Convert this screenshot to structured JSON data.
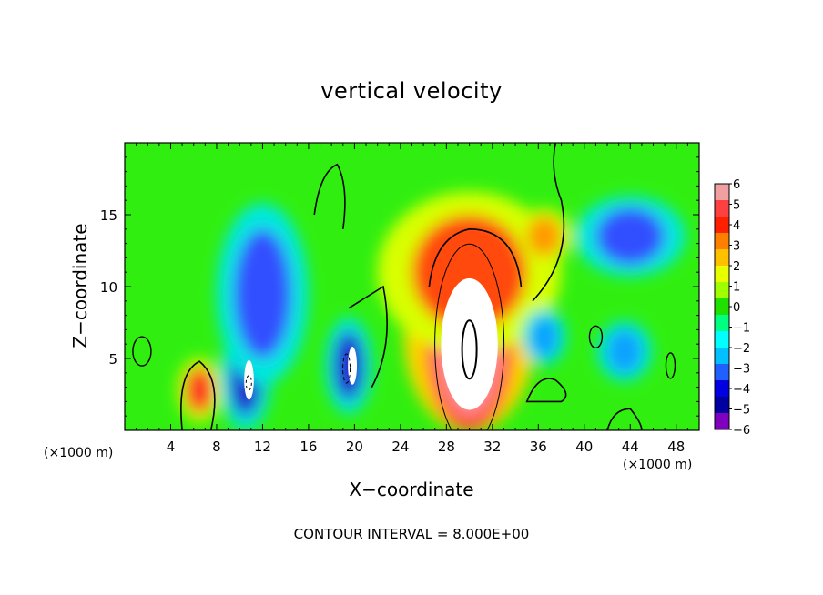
{
  "chart_data": {
    "type": "heatmap",
    "title": "vertical velocity",
    "xlabel": "X−coordinate",
    "ylabel": "Z−coordinate",
    "x_unit_label_left": "(×1000 m)",
    "x_unit_label_right": "(×1000 m)",
    "footnote": "CONTOUR INTERVAL = 8.000E+00",
    "xlim": [
      0,
      50
    ],
    "ylim": [
      0,
      20
    ],
    "x_ticks": [
      4,
      8,
      12,
      16,
      20,
      24,
      28,
      32,
      36,
      40,
      44,
      48
    ],
    "y_ticks": [
      5,
      10,
      15
    ],
    "colorbar": {
      "range": [
        -6,
        6
      ],
      "labels": [
        "6",
        "5",
        "4",
        "3",
        "2",
        "1",
        "0",
        "−1",
        "−2",
        "−3",
        "−4",
        "−5",
        "−6"
      ],
      "colors": [
        "#f0a0a0",
        "#ff4040",
        "#ff2000",
        "#ff8000",
        "#ffc000",
        "#e8ff00",
        "#a0ff00",
        "#20e000",
        "#00ff80",
        "#00ffff",
        "#00c0ff",
        "#2060ff",
        "#0000e0",
        "#0000a0",
        "#8000c0"
      ]
    },
    "features": [
      {
        "kind": "updraft_core",
        "x": 30,
        "z": 6,
        "rx": 2.6,
        "rz": 5.2,
        "value": 16
      },
      {
        "kind": "updraft",
        "x": 30,
        "z": 11,
        "rx": 5,
        "rz": 4,
        "value": 4
      },
      {
        "kind": "updraft",
        "x": 6.5,
        "z": 2.8,
        "rx": 1.2,
        "rz": 1.6,
        "value": 5
      },
      {
        "kind": "updraft",
        "x": 36.5,
        "z": 13.5,
        "rx": 1.5,
        "rz": 1.4,
        "value": 3
      },
      {
        "kind": "downdraft",
        "x": 10.5,
        "z": 3.5,
        "rx": 1.4,
        "rz": 2.5,
        "value": -9
      },
      {
        "kind": "downdraft",
        "x": 19.5,
        "z": 4.5,
        "rx": 1.3,
        "rz": 2.4,
        "value": -8
      },
      {
        "kind": "downdraft",
        "x": 12,
        "z": 9.5,
        "rx": 2.5,
        "rz": 4.5,
        "value": -4
      },
      {
        "kind": "downdraft",
        "x": 44,
        "z": 13.5,
        "rx": 3,
        "rz": 2,
        "value": -4
      },
      {
        "kind": "downdraft",
        "x": 36.5,
        "z": 6.5,
        "rx": 1.2,
        "rz": 1.4,
        "value": -3.5
      },
      {
        "kind": "downdraft",
        "x": 43.5,
        "z": 5.5,
        "rx": 1.5,
        "rz": 1.5,
        "value": -3
      }
    ]
  }
}
